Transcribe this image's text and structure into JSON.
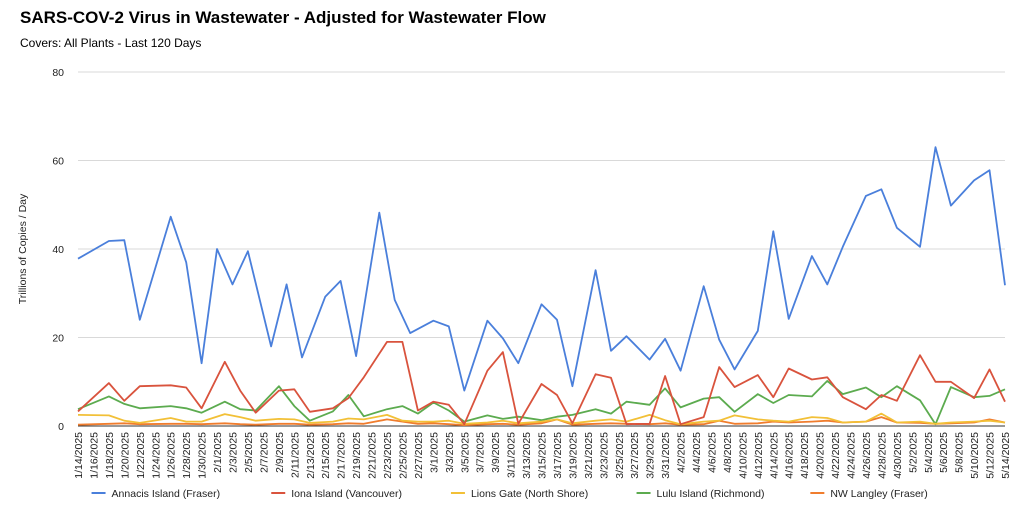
{
  "header": {
    "title": "SARS-COV-2 Virus in Wastewater - Adjusted for Wastewater Flow",
    "subtitle": "Covers: All Plants - Last 120 Days"
  },
  "chart_data": {
    "type": "line",
    "title": "SARS-COV-2 Virus in Wastewater - Adjusted for Wastewater Flow",
    "subtitle": "Covers: All Plants - Last 120 Days",
    "xlabel": "",
    "ylabel": "Trillions of Copies / Day",
    "ylim": [
      0,
      80
    ],
    "yticks": [
      0,
      20,
      40,
      60,
      80
    ],
    "grid": true,
    "legend": "bottom",
    "x_tick_labels": [
      "1/14/2025",
      "1/16/2025",
      "1/18/2025",
      "1/20/2025",
      "1/22/2025",
      "1/24/2025",
      "1/26/2025",
      "1/28/2025",
      "1/30/2025",
      "2/1/2025",
      "2/3/2025",
      "2/5/2025",
      "2/7/2025",
      "2/9/2025",
      "2/11/2025",
      "2/13/2025",
      "2/15/2025",
      "2/17/2025",
      "2/19/2025",
      "2/21/2025",
      "2/23/2025",
      "2/25/2025",
      "2/27/2025",
      "3/1/2025",
      "3/3/2025",
      "3/5/2025",
      "3/7/2025",
      "3/9/2025",
      "3/11/2025",
      "3/13/2025",
      "3/15/2025",
      "3/17/2025",
      "3/19/2025",
      "3/21/2025",
      "3/23/2025",
      "3/25/2025",
      "3/27/2025",
      "3/29/2025",
      "3/31/2025",
      "4/2/2025",
      "4/4/2025",
      "4/6/2025",
      "4/8/2025",
      "4/10/2025",
      "4/12/2025",
      "4/14/2025",
      "4/16/2025",
      "4/18/2025",
      "4/20/2025",
      "4/22/2025",
      "4/24/2025",
      "4/26/2025",
      "4/28/2025",
      "4/30/2025",
      "5/2/2025",
      "5/4/2025",
      "5/6/2025",
      "5/8/2025",
      "5/10/2025",
      "5/12/2025",
      "5/14/2025"
    ],
    "series": [
      {
        "name": "Annacis Island (Fraser)",
        "color": "#4a7fdb",
        "points": [
          [
            "1/14/2025",
            37.8
          ],
          [
            "1/18/2025",
            41.8
          ],
          [
            "1/20/2025",
            42.0
          ],
          [
            "1/22/2025",
            24.0
          ],
          [
            "1/26/2025",
            47.3
          ],
          [
            "1/28/2025",
            37.0
          ],
          [
            "1/30/2025",
            14.2
          ],
          [
            "2/1/2025",
            40.0
          ],
          [
            "2/3/2025",
            32.0
          ],
          [
            "2/5/2025",
            39.5
          ],
          [
            "2/8/2025",
            18.0
          ],
          [
            "2/10/2025",
            32.0
          ],
          [
            "2/12/2025",
            15.5
          ],
          [
            "2/15/2025",
            29.2
          ],
          [
            "2/17/2025",
            32.8
          ],
          [
            "2/19/2025",
            15.8
          ],
          [
            "2/22/2025",
            48.2
          ],
          [
            "2/24/2025",
            28.5
          ],
          [
            "2/26/2025",
            21.0
          ],
          [
            "3/1/2025",
            23.8
          ],
          [
            "3/3/2025",
            22.5
          ],
          [
            "3/5/2025",
            8.0
          ],
          [
            "3/8/2025",
            23.8
          ],
          [
            "3/10/2025",
            19.8
          ],
          [
            "3/12/2025",
            14.2
          ],
          [
            "3/15/2025",
            27.5
          ],
          [
            "3/17/2025",
            24.0
          ],
          [
            "3/19/2025",
            9.0
          ],
          [
            "3/22/2025",
            35.2
          ],
          [
            "3/24/2025",
            17.0
          ],
          [
            "3/26/2025",
            20.3
          ],
          [
            "3/29/2025",
            15.0
          ],
          [
            "3/31/2025",
            19.7
          ],
          [
            "4/2/2025",
            12.5
          ],
          [
            "4/5/2025",
            31.6
          ],
          [
            "4/7/2025",
            19.5
          ],
          [
            "4/9/2025",
            12.8
          ],
          [
            "4/12/2025",
            21.5
          ],
          [
            "4/14/2025",
            44.0
          ],
          [
            "4/16/2025",
            24.2
          ],
          [
            "4/19/2025",
            38.4
          ],
          [
            "4/21/2025",
            32.0
          ],
          [
            "4/23/2025",
            40.5
          ],
          [
            "4/26/2025",
            52.0
          ],
          [
            "4/28/2025",
            53.5
          ],
          [
            "4/30/2025",
            44.8
          ],
          [
            "5/3/2025",
            40.5
          ],
          [
            "5/5/2025",
            63.0
          ],
          [
            "5/7/2025",
            49.8
          ],
          [
            "5/10/2025",
            55.5
          ],
          [
            "5/12/2025",
            57.8
          ],
          [
            "5/14/2025",
            31.8
          ]
        ]
      },
      {
        "name": "Iona Island (Vancouver)",
        "color": "#d9533d",
        "points": [
          [
            "1/14/2025",
            3.3
          ],
          [
            "1/18/2025",
            9.7
          ],
          [
            "1/20/2025",
            5.7
          ],
          [
            "1/22/2025",
            9.0
          ],
          [
            "1/26/2025",
            9.2
          ],
          [
            "1/28/2025",
            8.7
          ],
          [
            "1/30/2025",
            4.0
          ],
          [
            "2/2/2025",
            14.5
          ],
          [
            "2/4/2025",
            8.0
          ],
          [
            "2/6/2025",
            3.0
          ],
          [
            "2/9/2025",
            8.0
          ],
          [
            "2/11/2025",
            8.3
          ],
          [
            "2/13/2025",
            3.2
          ],
          [
            "2/16/2025",
            4.0
          ],
          [
            "2/18/2025",
            6.3
          ],
          [
            "2/20/2025",
            11.0
          ],
          [
            "2/23/2025",
            19.0
          ],
          [
            "2/25/2025",
            19.0
          ],
          [
            "2/27/2025",
            3.5
          ],
          [
            "3/1/2025",
            5.5
          ],
          [
            "3/3/2025",
            4.8
          ],
          [
            "3/5/2025",
            0.4
          ],
          [
            "3/8/2025",
            12.5
          ],
          [
            "3/10/2025",
            16.7
          ],
          [
            "3/12/2025",
            0.5
          ],
          [
            "3/15/2025",
            9.5
          ],
          [
            "3/17/2025",
            7.0
          ],
          [
            "3/19/2025",
            0.6
          ],
          [
            "3/22/2025",
            11.7
          ],
          [
            "3/24/2025",
            10.9
          ],
          [
            "3/26/2025",
            0.4
          ],
          [
            "3/29/2025",
            0.5
          ],
          [
            "3/31/2025",
            11.3
          ],
          [
            "4/2/2025",
            0.4
          ],
          [
            "4/5/2025",
            2.0
          ],
          [
            "4/7/2025",
            13.3
          ],
          [
            "4/9/2025",
            8.8
          ],
          [
            "4/12/2025",
            11.5
          ],
          [
            "4/14/2025",
            6.5
          ],
          [
            "4/16/2025",
            13.0
          ],
          [
            "4/19/2025",
            10.5
          ],
          [
            "4/21/2025",
            11.0
          ],
          [
            "4/23/2025",
            6.5
          ],
          [
            "4/26/2025",
            3.8
          ],
          [
            "4/28/2025",
            7.0
          ],
          [
            "4/30/2025",
            5.7
          ],
          [
            "5/3/2025",
            16.0
          ],
          [
            "5/5/2025",
            10.0
          ],
          [
            "5/7/2025",
            10.0
          ],
          [
            "5/10/2025",
            6.3
          ],
          [
            "5/12/2025",
            12.8
          ],
          [
            "5/14/2025",
            5.5
          ]
        ]
      },
      {
        "name": "Lions Gate (North Shore)",
        "color": "#f2c037",
        "points": [
          [
            "1/14/2025",
            2.5
          ],
          [
            "1/18/2025",
            2.4
          ],
          [
            "1/20/2025",
            1.2
          ],
          [
            "1/22/2025",
            0.7
          ],
          [
            "1/26/2025",
            1.8
          ],
          [
            "1/28/2025",
            1.0
          ],
          [
            "1/30/2025",
            1.0
          ],
          [
            "2/2/2025",
            2.7
          ],
          [
            "2/4/2025",
            2.0
          ],
          [
            "2/6/2025",
            1.2
          ],
          [
            "2/9/2025",
            1.6
          ],
          [
            "2/11/2025",
            1.5
          ],
          [
            "2/13/2025",
            0.7
          ],
          [
            "2/16/2025",
            1.0
          ],
          [
            "2/18/2025",
            1.7
          ],
          [
            "2/20/2025",
            1.5
          ],
          [
            "2/23/2025",
            2.5
          ],
          [
            "2/25/2025",
            1.2
          ],
          [
            "2/27/2025",
            1.0
          ],
          [
            "3/1/2025",
            1.0
          ],
          [
            "3/3/2025",
            1.2
          ],
          [
            "3/5/2025",
            0.5
          ],
          [
            "3/8/2025",
            0.8
          ],
          [
            "3/10/2025",
            1.2
          ],
          [
            "3/12/2025",
            0.6
          ],
          [
            "3/15/2025",
            1.0
          ],
          [
            "3/17/2025",
            1.5
          ],
          [
            "3/19/2025",
            0.6
          ],
          [
            "3/22/2025",
            1.2
          ],
          [
            "3/24/2025",
            1.5
          ],
          [
            "3/26/2025",
            1.0
          ],
          [
            "3/29/2025",
            2.5
          ],
          [
            "3/31/2025",
            1.3
          ],
          [
            "4/2/2025",
            0.4
          ],
          [
            "4/5/2025",
            1.0
          ],
          [
            "4/7/2025",
            1.2
          ],
          [
            "4/9/2025",
            2.4
          ],
          [
            "4/12/2025",
            1.5
          ],
          [
            "4/14/2025",
            1.2
          ],
          [
            "4/16/2025",
            1.0
          ],
          [
            "4/19/2025",
            2.0
          ],
          [
            "4/21/2025",
            1.8
          ],
          [
            "4/23/2025",
            0.8
          ],
          [
            "4/26/2025",
            1.0
          ],
          [
            "4/28/2025",
            2.8
          ],
          [
            "4/30/2025",
            0.8
          ],
          [
            "5/3/2025",
            1.0
          ],
          [
            "5/5/2025",
            0.5
          ],
          [
            "5/7/2025",
            0.8
          ],
          [
            "5/10/2025",
            1.0
          ],
          [
            "5/12/2025",
            1.2
          ],
          [
            "5/14/2025",
            0.8
          ]
        ]
      },
      {
        "name": "Lulu Island (Richmond)",
        "color": "#5cab4f",
        "points": [
          [
            "1/14/2025",
            3.8
          ],
          [
            "1/18/2025",
            6.7
          ],
          [
            "1/20/2025",
            5.0
          ],
          [
            "1/22/2025",
            4.0
          ],
          [
            "1/26/2025",
            4.5
          ],
          [
            "1/28/2025",
            4.0
          ],
          [
            "1/30/2025",
            3.0
          ],
          [
            "2/2/2025",
            5.5
          ],
          [
            "2/4/2025",
            3.8
          ],
          [
            "2/6/2025",
            3.5
          ],
          [
            "2/9/2025",
            9.0
          ],
          [
            "2/11/2025",
            4.5
          ],
          [
            "2/13/2025",
            1.2
          ],
          [
            "2/16/2025",
            3.3
          ],
          [
            "2/18/2025",
            7.0
          ],
          [
            "2/20/2025",
            2.2
          ],
          [
            "2/23/2025",
            3.8
          ],
          [
            "2/25/2025",
            4.5
          ],
          [
            "2/27/2025",
            2.8
          ],
          [
            "3/1/2025",
            5.3
          ],
          [
            "3/3/2025",
            3.5
          ],
          [
            "3/5/2025",
            1.0
          ],
          [
            "3/8/2025",
            2.4
          ],
          [
            "3/10/2025",
            1.6
          ],
          [
            "3/12/2025",
            2.1
          ],
          [
            "3/15/2025",
            1.3
          ],
          [
            "3/17/2025",
            2.1
          ],
          [
            "3/19/2025",
            2.5
          ],
          [
            "3/22/2025",
            3.8
          ],
          [
            "3/24/2025",
            2.8
          ],
          [
            "3/26/2025",
            5.5
          ],
          [
            "3/29/2025",
            4.8
          ],
          [
            "3/31/2025",
            8.5
          ],
          [
            "4/2/2025",
            4.2
          ],
          [
            "4/5/2025",
            6.2
          ],
          [
            "4/7/2025",
            6.5
          ],
          [
            "4/9/2025",
            3.2
          ],
          [
            "4/12/2025",
            7.2
          ],
          [
            "4/14/2025",
            5.2
          ],
          [
            "4/16/2025",
            7.0
          ],
          [
            "4/19/2025",
            6.7
          ],
          [
            "4/21/2025",
            10.2
          ],
          [
            "4/23/2025",
            7.2
          ],
          [
            "4/26/2025",
            8.7
          ],
          [
            "4/28/2025",
            6.5
          ],
          [
            "4/30/2025",
            9.0
          ],
          [
            "5/3/2025",
            5.8
          ],
          [
            "5/5/2025",
            0.4
          ],
          [
            "5/7/2025",
            8.8
          ],
          [
            "5/10/2025",
            6.5
          ],
          [
            "5/12/2025",
            6.8
          ],
          [
            "5/14/2025",
            8.3
          ]
        ]
      },
      {
        "name": "NW Langley (Fraser)",
        "color": "#f07d2e",
        "points": [
          [
            "1/14/2025",
            0.3
          ],
          [
            "1/18/2025",
            0.5
          ],
          [
            "1/20/2025",
            0.6
          ],
          [
            "1/22/2025",
            0.4
          ],
          [
            "1/26/2025",
            0.5
          ],
          [
            "1/28/2025",
            0.5
          ],
          [
            "1/30/2025",
            0.4
          ],
          [
            "2/2/2025",
            0.6
          ],
          [
            "2/4/2025",
            0.4
          ],
          [
            "2/6/2025",
            0.3
          ],
          [
            "2/9/2025",
            0.5
          ],
          [
            "2/11/2025",
            0.5
          ],
          [
            "2/13/2025",
            0.3
          ],
          [
            "2/16/2025",
            0.4
          ],
          [
            "2/18/2025",
            0.6
          ],
          [
            "2/20/2025",
            0.5
          ],
          [
            "2/23/2025",
            1.5
          ],
          [
            "2/25/2025",
            1.0
          ],
          [
            "2/27/2025",
            0.5
          ],
          [
            "3/1/2025",
            0.6
          ],
          [
            "3/3/2025",
            0.4
          ],
          [
            "3/5/2025",
            0.2
          ],
          [
            "3/8/2025",
            0.4
          ],
          [
            "3/10/2025",
            0.5
          ],
          [
            "3/12/2025",
            0.3
          ],
          [
            "3/15/2025",
            0.6
          ],
          [
            "3/17/2025",
            1.5
          ],
          [
            "3/19/2025",
            0.3
          ],
          [
            "3/22/2025",
            0.5
          ],
          [
            "3/24/2025",
            0.6
          ],
          [
            "3/26/2025",
            0.5
          ],
          [
            "3/29/2025",
            0.4
          ],
          [
            "3/31/2025",
            0.6
          ],
          [
            "4/2/2025",
            0.3
          ],
          [
            "4/5/2025",
            0.4
          ],
          [
            "4/7/2025",
            1.2
          ],
          [
            "4/9/2025",
            0.5
          ],
          [
            "4/12/2025",
            0.6
          ],
          [
            "4/14/2025",
            1.0
          ],
          [
            "4/16/2025",
            0.8
          ],
          [
            "4/19/2025",
            1.0
          ],
          [
            "4/21/2025",
            1.2
          ],
          [
            "4/23/2025",
            0.8
          ],
          [
            "4/26/2025",
            1.0
          ],
          [
            "4/28/2025",
            2.0
          ],
          [
            "4/30/2025",
            0.8
          ],
          [
            "5/3/2025",
            0.7
          ],
          [
            "5/5/2025",
            0.5
          ],
          [
            "5/7/2025",
            0.6
          ],
          [
            "5/10/2025",
            0.8
          ],
          [
            "5/12/2025",
            1.5
          ],
          [
            "5/14/2025",
            0.8
          ]
        ]
      }
    ]
  }
}
